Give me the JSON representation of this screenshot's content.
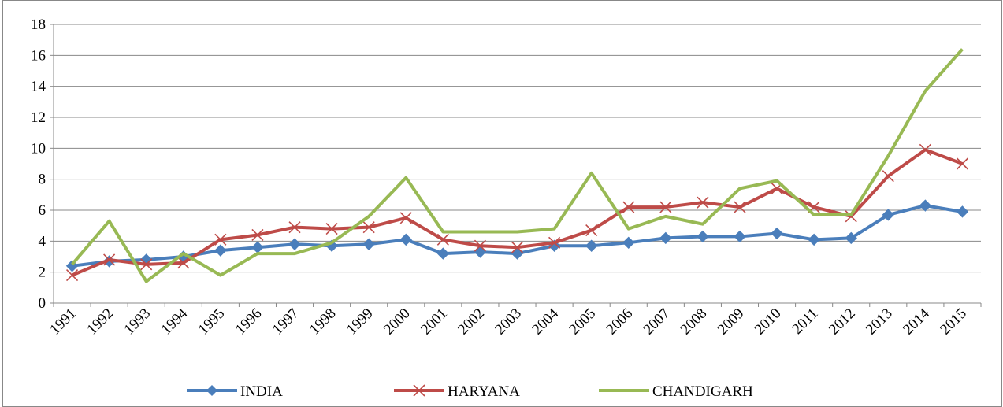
{
  "chart_data": {
    "type": "line",
    "categories": [
      "1991",
      "1992",
      "1993",
      "1994",
      "1995",
      "1996",
      "1997",
      "1998",
      "1999",
      "2000",
      "2001",
      "2002",
      "2003",
      "2004",
      "2005",
      "2006",
      "2007",
      "2008",
      "2009",
      "2010",
      "2011",
      "2012",
      "2013",
      "2014",
      "2015"
    ],
    "series": [
      {
        "name": "INDIA",
        "color": "#4a7ebb",
        "marker": "diamond",
        "values": [
          2.4,
          2.7,
          2.8,
          3.0,
          3.4,
          3.6,
          3.8,
          3.7,
          3.8,
          4.1,
          3.2,
          3.3,
          3.2,
          3.7,
          3.7,
          3.9,
          4.2,
          4.3,
          4.3,
          4.5,
          4.1,
          4.2,
          5.7,
          6.3,
          5.9
        ]
      },
      {
        "name": "HARYANA",
        "color": "#be4b48",
        "marker": "x",
        "values": [
          1.8,
          2.8,
          2.5,
          2.6,
          4.1,
          4.4,
          4.9,
          4.8,
          4.9,
          5.5,
          4.1,
          3.7,
          3.6,
          3.9,
          4.7,
          6.2,
          6.2,
          6.5,
          6.2,
          7.4,
          6.2,
          5.6,
          8.2,
          9.9,
          9.0
        ]
      },
      {
        "name": "CHANDIGARH",
        "color": "#98b954",
        "marker": "none",
        "values": [
          2.5,
          5.3,
          1.4,
          3.2,
          1.8,
          3.2,
          3.2,
          3.9,
          5.6,
          8.1,
          4.6,
          4.6,
          4.6,
          4.8,
          8.4,
          4.8,
          5.6,
          5.1,
          7.4,
          7.9,
          5.7,
          5.7,
          9.5,
          13.7,
          16.4
        ]
      }
    ],
    "ylim": [
      0,
      18
    ],
    "yticks": [
      0,
      2,
      4,
      6,
      8,
      10,
      12,
      14,
      16,
      18
    ],
    "grid": true,
    "legend": "bottom"
  }
}
